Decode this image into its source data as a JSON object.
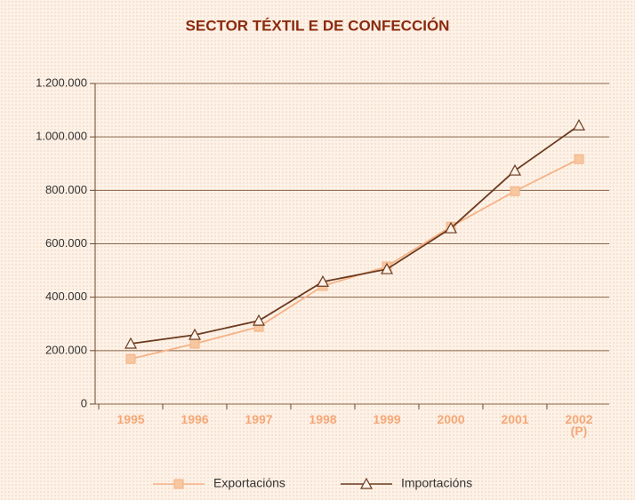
{
  "chart_data": {
    "type": "line",
    "title": "SECTOR TÉXTIL E DE CONFECCIÓN",
    "categories": [
      "1995",
      "1996",
      "1997",
      "1998",
      "1999",
      "2000",
      "2001",
      "2002 (P)"
    ],
    "series": [
      {
        "name": "Exportacións",
        "color": "#f4b286",
        "marker": "square",
        "values": [
          169000,
          226000,
          289000,
          442000,
          515000,
          664000,
          797000,
          917000
        ]
      },
      {
        "name": "Importacións",
        "color": "#6b3a1f",
        "marker": "triangle",
        "values": [
          226000,
          259000,
          312000,
          458000,
          505000,
          658000,
          874000,
          1043000
        ]
      }
    ],
    "ylim": [
      0,
      1200000
    ],
    "yticks": [
      0,
      {
        "value": 200000,
        "label": "200.000"
      },
      {
        "value": 400000,
        "label": "400.000"
      },
      {
        "value": 600000,
        "label": "600.000"
      },
      {
        "value": 800000,
        "label": "800.000"
      },
      {
        "value": 1000000,
        "label": "1.000.000"
      },
      {
        "value": 1200000,
        "label": "1.200.000"
      }
    ],
    "grid": true,
    "legend": "bottom"
  }
}
